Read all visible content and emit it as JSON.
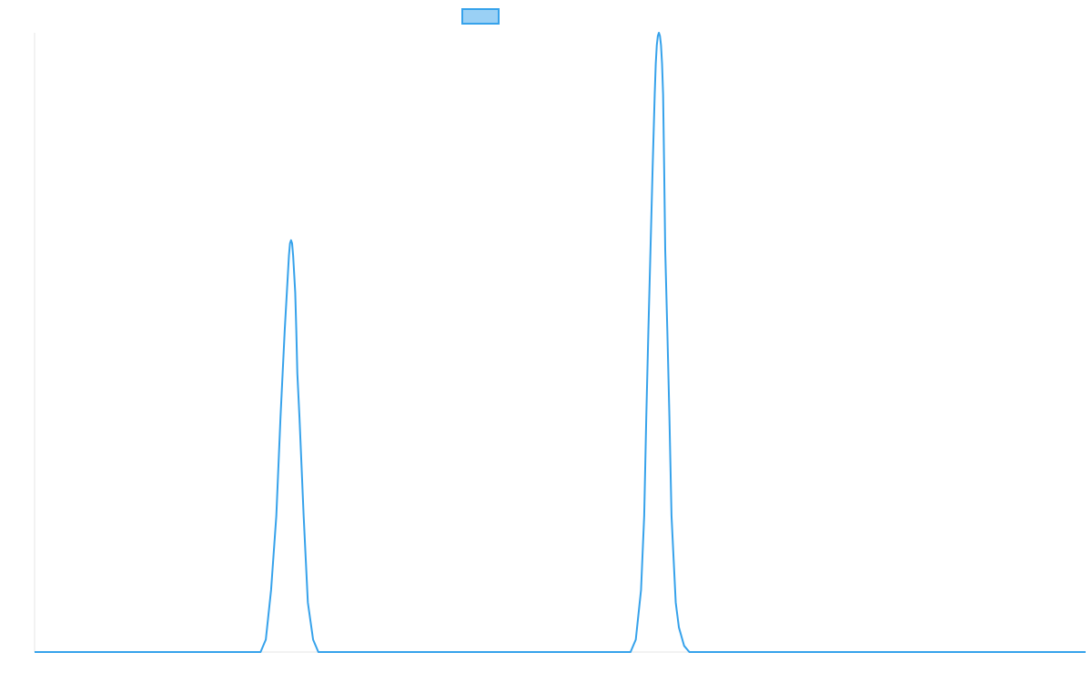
{
  "chart_data": {
    "type": "line",
    "title": "",
    "xlabel": "",
    "ylabel": "",
    "grid": false,
    "legend": {
      "placement": "top-center",
      "entries": [
        ""
      ]
    },
    "colors": {
      "line": "#36a2eb",
      "fill": "#9ad0f5",
      "axis": "#e6e6e6"
    },
    "xlim": [
      0,
      1000
    ],
    "ylim": [
      0,
      1
    ],
    "series": [
      {
        "x": [
          0,
          215,
          220,
          225,
          230,
          232,
          234,
          236,
          238,
          240,
          241,
          242,
          243,
          244,
          245,
          246,
          247,
          248,
          249,
          250,
          252,
          254,
          256,
          258,
          260,
          265,
          270,
          567,
          572,
          577,
          580,
          582,
          584,
          586,
          588,
          590,
          591,
          592,
          593,
          594,
          595,
          596,
          597,
          598,
          599,
          600,
          602,
          604,
          606,
          608,
          610,
          613,
          618,
          623,
          1000
        ],
        "y": [
          0,
          0,
          0.02,
          0.1,
          0.22,
          0.3,
          0.38,
          0.45,
          0.52,
          0.58,
          0.61,
          0.64,
          0.66,
          0.665,
          0.66,
          0.64,
          0.61,
          0.58,
          0.52,
          0.45,
          0.38,
          0.3,
          0.22,
          0.15,
          0.08,
          0.02,
          0,
          0,
          0.02,
          0.1,
          0.22,
          0.38,
          0.52,
          0.65,
          0.78,
          0.9,
          0.95,
          0.98,
          0.995,
          1.0,
          0.995,
          0.98,
          0.95,
          0.9,
          0.78,
          0.65,
          0.52,
          0.38,
          0.22,
          0.15,
          0.08,
          0.04,
          0.01,
          0,
          0
        ]
      }
    ]
  }
}
